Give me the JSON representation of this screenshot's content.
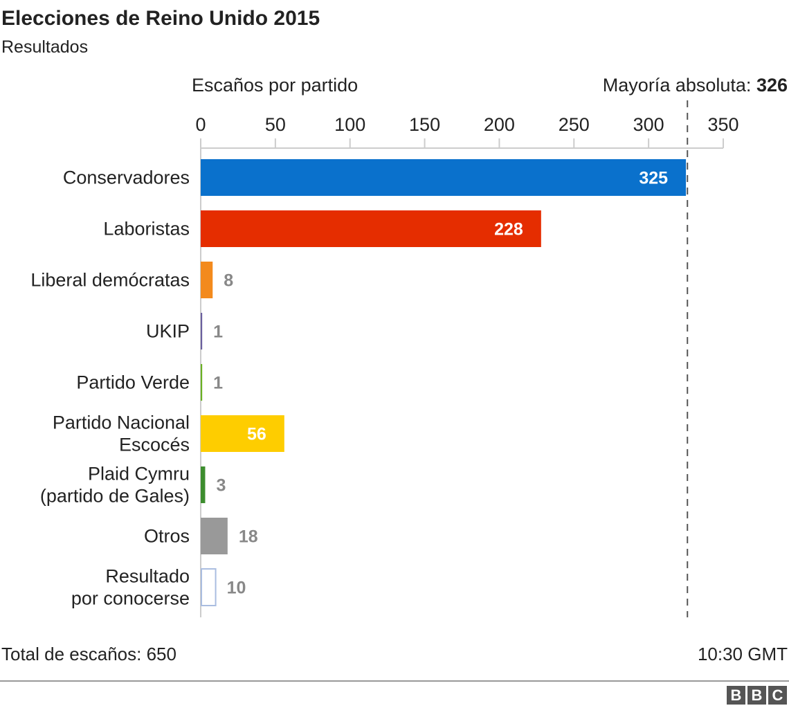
{
  "header": {
    "title": "Elecciones de Reino Unido 2015",
    "subtitle": "Resultados"
  },
  "chart_data": {
    "type": "bar",
    "orientation": "horizontal",
    "title": "Elecciones de Reino Unido 2015",
    "subtitle": "Resultados",
    "xlabel": "Escaños por partido",
    "xlim": [
      0,
      350
    ],
    "xticks": [
      0,
      50,
      100,
      150,
      200,
      250,
      300,
      350
    ],
    "grid": false,
    "categories": [
      "Conservadores",
      "Laboristas",
      "Liberal demócratas",
      "UKIP",
      "Partido Verde",
      "Partido Nacional Escocés",
      "Plaid Cymru (partido de Gales)",
      "Otros",
      "Resultado por conocerse"
    ],
    "category_lines": [
      [
        "Conservadores"
      ],
      [
        "Laboristas"
      ],
      [
        "Liberal demócratas"
      ],
      [
        "UKIP"
      ],
      [
        "Partido Verde"
      ],
      [
        "Partido Nacional",
        "Escocés"
      ],
      [
        "Plaid Cymru",
        "(partido de Gales)"
      ],
      [
        "Otros"
      ],
      [
        "Resultado",
        "por conocerse"
      ]
    ],
    "values": [
      325,
      228,
      8,
      1,
      1,
      56,
      3,
      18,
      10
    ],
    "colors": [
      "#0a71cc",
      "#e52d00",
      "#f38a1d",
      "#6a5f9e",
      "#6ab023",
      "#fecd00",
      "#3d8d2e",
      "#999999",
      "#ffffff"
    ],
    "outline_colors": [
      "",
      "",
      "",
      "",
      "",
      "",
      "",
      "",
      "#aabde0"
    ],
    "reference_line": {
      "label": "Mayoría absoluta:",
      "value": 326
    }
  },
  "footer": {
    "total": "Total de escaños: 650",
    "time": "10:30 GMT",
    "logo": [
      "B",
      "B",
      "C"
    ]
  }
}
